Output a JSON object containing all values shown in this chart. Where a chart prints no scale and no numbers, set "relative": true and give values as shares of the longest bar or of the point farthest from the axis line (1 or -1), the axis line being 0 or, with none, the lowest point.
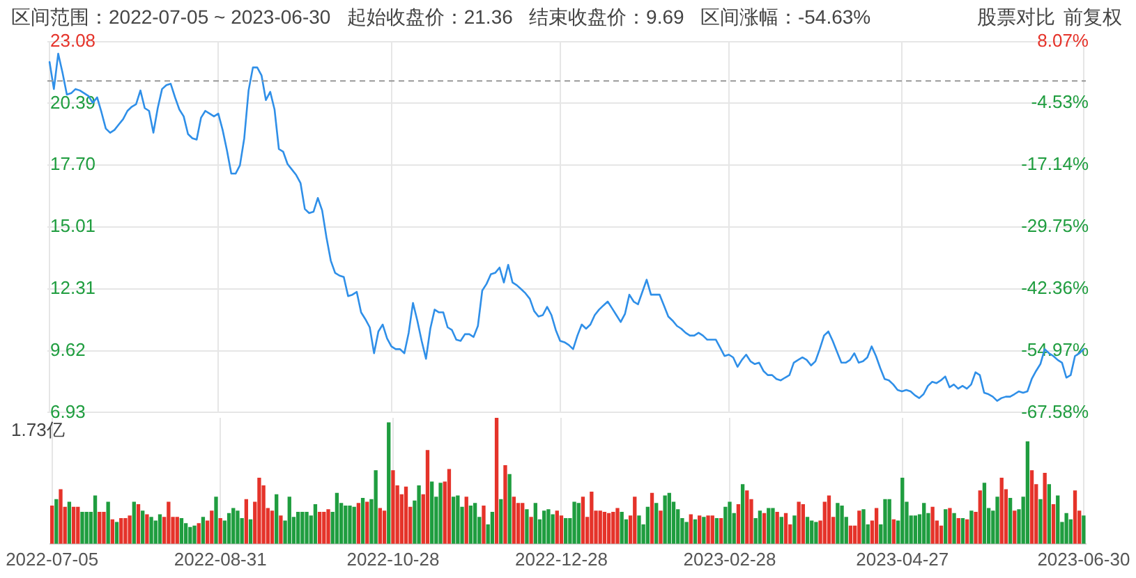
{
  "chart_data": [
    {
      "type": "line",
      "title": "区间范围：2022-07-05 ~ 2023-06-30   起始收盘价：21.36   结束收盘价：9.69   区间涨幅：-54.63%",
      "annotations": [
        "股票对比",
        "前复权"
      ],
      "categories": [
        "2022-07-05",
        null,
        null,
        null,
        null,
        null,
        null,
        null,
        null,
        null,
        null,
        null,
        null,
        null,
        null,
        null,
        null,
        null,
        null,
        null,
        null,
        null,
        null,
        null,
        null,
        null,
        null,
        null,
        null,
        null,
        null,
        null,
        null,
        null,
        null,
        null,
        null,
        null,
        null,
        "2022-08-31",
        null,
        null,
        null,
        null,
        null,
        null,
        null,
        null,
        null,
        null,
        null,
        null,
        null,
        null,
        null,
        null,
        null,
        null,
        null,
        null,
        null,
        null,
        null,
        null,
        null,
        null,
        null,
        null,
        null,
        null,
        null,
        null,
        null,
        null,
        null,
        null,
        null,
        null,
        null,
        "2022-10-28",
        null,
        null,
        null,
        null,
        null,
        null,
        null,
        null,
        null,
        null,
        null,
        null,
        null,
        null,
        null,
        null,
        null,
        null,
        null,
        null,
        null,
        null,
        null,
        null,
        null,
        null,
        null,
        null,
        null,
        null,
        null,
        null,
        null,
        null,
        null,
        null,
        null,
        null,
        "2022-12-28",
        null,
        null,
        null,
        null,
        null,
        null,
        null,
        null,
        null,
        null,
        null,
        null,
        null,
        null,
        null,
        null,
        null,
        null,
        null,
        null,
        null,
        null,
        null,
        null,
        null,
        null,
        null,
        null,
        null,
        null,
        null,
        null,
        null,
        null,
        null,
        null,
        null,
        null,
        "2023-02-28",
        null,
        null,
        null,
        null,
        null,
        null,
        null,
        null,
        null,
        null,
        null,
        null,
        null,
        null,
        null,
        null,
        null,
        null,
        null,
        null,
        null,
        null,
        null,
        null,
        null,
        null,
        null,
        null,
        null,
        null,
        null,
        null,
        null,
        null,
        null,
        null,
        null,
        null,
        null,
        "2023-04-27",
        null,
        null,
        null,
        null,
        null,
        null,
        null,
        null,
        null,
        null,
        null,
        null,
        null,
        null,
        null,
        null,
        null,
        null,
        null,
        null,
        null,
        null,
        null,
        null,
        null,
        null,
        null,
        null,
        null,
        null,
        null,
        null,
        null,
        null,
        null,
        null,
        null,
        null,
        null,
        null,
        null,
        "2023-06-30"
      ],
      "values": [
        22.19,
        21.01,
        22.55,
        21.72,
        20.77,
        20.83,
        21.01,
        20.95,
        20.83,
        20.71,
        20.41,
        20.65,
        20.0,
        19.29,
        19.11,
        19.23,
        19.47,
        19.7,
        20.06,
        20.24,
        20.35,
        20.95,
        20.18,
        20.06,
        19.11,
        20.18,
        21.01,
        21.18,
        21.24,
        20.65,
        20.12,
        19.82,
        19.05,
        18.87,
        18.81,
        19.76,
        20.06,
        19.94,
        19.82,
        19.94,
        19.23,
        18.34,
        17.33,
        17.33,
        17.69,
        18.87,
        20.95,
        21.95,
        21.95,
        21.6,
        20.53,
        20.89,
        20.12,
        18.4,
        18.28,
        17.75,
        17.51,
        17.27,
        16.92,
        15.79,
        15.61,
        15.67,
        16.27,
        15.73,
        14.55,
        13.54,
        13.01,
        12.89,
        12.83,
        12.0,
        12.06,
        12.18,
        11.29,
        10.99,
        10.64,
        9.51,
        10.46,
        10.76,
        10.16,
        9.81,
        9.69,
        9.69,
        9.51,
        10.4,
        11.7,
        10.93,
        10.05,
        9.27,
        10.58,
        11.41,
        11.29,
        11.29,
        10.64,
        10.52,
        10.1,
        10.05,
        10.34,
        10.34,
        10.22,
        10.7,
        12.24,
        12.53,
        12.95,
        13.01,
        13.24,
        12.59,
        13.36,
        12.59,
        12.47,
        12.3,
        12.12,
        11.88,
        11.35,
        11.11,
        11.17,
        11.53,
        11.17,
        10.52,
        10.05,
        9.99,
        9.87,
        9.69,
        10.28,
        10.76,
        10.58,
        10.76,
        11.17,
        11.41,
        11.59,
        11.76,
        11.47,
        11.17,
        10.87,
        11.23,
        12.06,
        11.76,
        11.64,
        12.18,
        12.71,
        12.06,
        12.06,
        12.06,
        11.59,
        11.11,
        10.93,
        10.7,
        10.58,
        10.4,
        10.28,
        10.28,
        10.4,
        10.28,
        10.1,
        10.1,
        10.1,
        9.75,
        9.39,
        9.45,
        9.33,
        8.92,
        9.22,
        9.45,
        9.16,
        9.04,
        9.1,
        8.74,
        8.56,
        8.56,
        8.39,
        8.33,
        8.45,
        8.56,
        9.1,
        9.22,
        9.33,
        9.22,
        8.98,
        9.16,
        9.69,
        10.28,
        10.46,
        10.05,
        9.57,
        9.1,
        9.1,
        9.22,
        9.51,
        9.1,
        9.16,
        9.33,
        9.81,
        9.39,
        8.86,
        8.39,
        8.33,
        8.15,
        7.91,
        7.85,
        7.91,
        7.85,
        7.68,
        7.56,
        7.73,
        8.09,
        8.27,
        8.21,
        8.33,
        8.5,
        8.03,
        8.15,
        7.97,
        8.09,
        7.97,
        8.15,
        8.68,
        8.56,
        7.79,
        7.73,
        7.62,
        7.44,
        7.56,
        7.62,
        7.62,
        7.73,
        7.85,
        7.79,
        7.85,
        8.39,
        8.74,
        9.04,
        9.69,
        9.51,
        9.39,
        9.22,
        9.1,
        8.45,
        8.56,
        9.39,
        9.51,
        9.69
      ],
      "color": "#2f8fe8",
      "ylim": [
        6.93,
        23.08
      ],
      "yticks": [
        6.93,
        9.62,
        12.31,
        15.01,
        {
          "value": 17.7,
          "label": "17.70"
        },
        20.39,
        23.08
      ],
      "y2lim": [
        -67.58,
        8.07
      ],
      "y2ticks": [
        {
          "value": -67.58,
          "label": "-67.58%"
        },
        {
          "value": -54.97,
          "label": "-54.97%"
        },
        {
          "value": -42.36,
          "label": "-42.36%"
        },
        {
          "value": -29.75,
          "label": "-29.75%"
        },
        {
          "value": -17.14,
          "label": "-17.14%"
        },
        {
          "value": -4.53,
          "label": "-4.53%"
        },
        {
          "value": 8.07,
          "label": "8.07%"
        }
      ],
      "ref_lines": [
        {
          "axis": "y",
          "value": 21.36,
          "color": "#999999",
          "line_style": "dashed"
        }
      ],
      "grid": true,
      "tick_labels": "y"
    },
    {
      "type": "bar",
      "annotations": [
        "1.73亿"
      ],
      "relative": true,
      "grid": "x",
      "tick_labels": "x",
      "categories": [
        "2022-07-05",
        null,
        null,
        null,
        null,
        null,
        null,
        null,
        null,
        null,
        null,
        null,
        null,
        null,
        null,
        null,
        null,
        null,
        null,
        null,
        null,
        null,
        null,
        null,
        null,
        null,
        null,
        null,
        null,
        null,
        null,
        null,
        null,
        null,
        null,
        null,
        null,
        null,
        null,
        "2022-08-31",
        null,
        null,
        null,
        null,
        null,
        null,
        null,
        null,
        null,
        null,
        null,
        null,
        null,
        null,
        null,
        null,
        null,
        null,
        null,
        null,
        null,
        null,
        null,
        null,
        null,
        null,
        null,
        null,
        null,
        null,
        null,
        null,
        null,
        null,
        null,
        null,
        null,
        null,
        null,
        "2022-10-28",
        null,
        null,
        null,
        null,
        null,
        null,
        null,
        null,
        null,
        null,
        null,
        null,
        null,
        null,
        null,
        null,
        null,
        null,
        null,
        null,
        null,
        null,
        null,
        null,
        null,
        null,
        null,
        null,
        null,
        null,
        null,
        null,
        null,
        null,
        null,
        null,
        null,
        null,
        "2022-12-28",
        null,
        null,
        null,
        null,
        null,
        null,
        null,
        null,
        null,
        null,
        null,
        null,
        null,
        null,
        null,
        null,
        null,
        null,
        null,
        null,
        null,
        null,
        null,
        null,
        null,
        null,
        null,
        null,
        null,
        null,
        null,
        null,
        null,
        null,
        null,
        null,
        null,
        null,
        "2023-02-28",
        null,
        null,
        null,
        null,
        null,
        null,
        null,
        null,
        null,
        null,
        null,
        null,
        null,
        null,
        null,
        null,
        null,
        null,
        null,
        null,
        null,
        null,
        null,
        null,
        null,
        null,
        null,
        null,
        null,
        null,
        null,
        null,
        null,
        null,
        null,
        null,
        null,
        null,
        null,
        "2023-04-27",
        null,
        null,
        null,
        null,
        null,
        null,
        null,
        null,
        null,
        null,
        null,
        null,
        null,
        null,
        null,
        null,
        null,
        null,
        null,
        null,
        null,
        null,
        null,
        null,
        null,
        null,
        null,
        null,
        null,
        null,
        null,
        null,
        null,
        null,
        null,
        null,
        null,
        null,
        null,
        null,
        null,
        "2023-06-30"
      ],
      "values": [
        0.3,
        0.35,
        0.43,
        0.29,
        0.33,
        0.29,
        0.29,
        0.25,
        0.25,
        0.25,
        0.38,
        0.25,
        0.25,
        0.33,
        0.19,
        0.17,
        0.2,
        0.2,
        0.22,
        0.33,
        0.31,
        0.26,
        0.23,
        0.21,
        0.18,
        0.23,
        0.21,
        0.33,
        0.21,
        0.21,
        0.2,
        0.16,
        0.13,
        0.14,
        0.16,
        0.21,
        0.18,
        0.26,
        0.37,
        0.2,
        0.18,
        0.24,
        0.28,
        0.26,
        0.2,
        0.35,
        0.19,
        0.33,
        0.52,
        0.46,
        0.28,
        0.26,
        0.39,
        0.22,
        0.18,
        0.37,
        0.21,
        0.25,
        0.25,
        0.25,
        0.22,
        0.31,
        0.25,
        0.25,
        0.27,
        0.25,
        0.4,
        0.32,
        0.3,
        0.3,
        0.29,
        0.32,
        0.36,
        0.33,
        0.35,
        0.58,
        0.28,
        0.26,
        0.96,
        0.58,
        0.46,
        0.39,
        0.45,
        0.29,
        0.34,
        0.46,
        0.39,
        0.74,
        0.49,
        0.37,
        0.48,
        0.49,
        0.59,
        0.37,
        0.38,
        0.29,
        0.37,
        0.3,
        0.32,
        0.21,
        0.3,
        0.15,
        0.25,
        1,
        0.35,
        0.62,
        0.55,
        0.37,
        0.32,
        0.32,
        0.27,
        0.21,
        0.32,
        0.19,
        0.26,
        0.27,
        0.23,
        0.26,
        0.22,
        0.2,
        0.2,
        0.33,
        0.32,
        0.37,
        0.21,
        0.41,
        0.26,
        0.26,
        0.25,
        0.24,
        0.25,
        0.28,
        0.25,
        0.19,
        0.22,
        0.37,
        0.22,
        0.15,
        0.29,
        0.4,
        0.32,
        0.26,
        0.38,
        0.4,
        0.33,
        0.27,
        0.2,
        0.17,
        0.23,
        0.19,
        0.22,
        0.21,
        0.22,
        0.22,
        0.2,
        0.2,
        0.29,
        0.33,
        0.24,
        0.31,
        0.47,
        0.42,
        0.35,
        0.2,
        0.26,
        0.24,
        0.28,
        0.28,
        0.25,
        0.21,
        0.24,
        0.15,
        0.22,
        0.33,
        0.31,
        0.21,
        0.18,
        0.17,
        0.18,
        0.33,
        0.38,
        0.21,
        0.32,
        0.3,
        0.21,
        0.14,
        0.14,
        0.26,
        0.27,
        0.15,
        0.18,
        0.28,
        0.15,
        0.35,
        0.35,
        0.19,
        0.18,
        0.52,
        0.33,
        0.22,
        0.22,
        0.23,
        0.32,
        0.24,
        0.29,
        0.18,
        0.14,
        0.27,
        0.28,
        0.24,
        0.2,
        0.2,
        0.19,
        0.26,
        0.25,
        0.42,
        0.48,
        0.28,
        0.26,
        0.37,
        0.52,
        0.43,
        0.36,
        0.26,
        0.27,
        0.37,
        0.81,
        0.58,
        0.47,
        0.35,
        0.56,
        0.47,
        0.31,
        0.38,
        0.17,
        0.24,
        0.19,
        0.42,
        0.26,
        0.22
      ],
      "colors": [
        "#e5332a",
        "#1f9d3f",
        "#e5332a",
        "#e5332a",
        "#1f9d3f",
        "#e5332a",
        "#e5332a",
        "#1f9d3f",
        "#1f9d3f",
        "#1f9d3f",
        "#1f9d3f",
        "#e5332a",
        "#e5332a",
        "#1f9d3f",
        "#e5332a",
        "#1f9d3f",
        "#e5332a",
        "#e5332a",
        "#e5332a",
        "#1f9d3f",
        "#e5332a",
        "#1f9d3f",
        "#e5332a",
        "#1f9d3f",
        "#1f9d3f",
        "#1f9d3f",
        "#e5332a",
        "#e5332a",
        "#e5332a",
        "#e5332a",
        "#1f9d3f",
        "#1f9d3f",
        "#1f9d3f",
        "#1f9d3f",
        "#e5332a",
        "#1f9d3f",
        "#e5332a",
        "#e5332a",
        "#1f9d3f",
        "#e5332a",
        "#1f9d3f",
        "#1f9d3f",
        "#1f9d3f",
        "#1f9d3f",
        "#1f9d3f",
        "#e5332a",
        "#1f9d3f",
        "#e5332a",
        "#e5332a",
        "#e5332a",
        "#e5332a",
        "#e5332a",
        "#1f9d3f",
        "#e5332a",
        "#1f9d3f",
        "#1f9d3f",
        "#1f9d3f",
        "#1f9d3f",
        "#1f9d3f",
        "#1f9d3f",
        "#1f9d3f",
        "#1f9d3f",
        "#e5332a",
        "#e5332a",
        "#e5332a",
        "#1f9d3f",
        "#1f9d3f",
        "#1f9d3f",
        "#1f9d3f",
        "#1f9d3f",
        "#1f9d3f",
        "#e5332a",
        "#1f9d3f",
        "#e5332a",
        "#1f9d3f",
        "#1f9d3f",
        "#e5332a",
        "#e5332a",
        "#1f9d3f",
        "#e5332a",
        "#e5332a",
        "#e5332a",
        "#e5332a",
        "#e5332a",
        "#1f9d3f",
        "#1f9d3f",
        "#e5332a",
        "#e5332a",
        "#1f9d3f",
        "#1f9d3f",
        "#1f9d3f",
        "#e5332a",
        "#e5332a",
        "#1f9d3f",
        "#1f9d3f",
        "#1f9d3f",
        "#e5332a",
        "#1f9d3f",
        "#1f9d3f",
        "#1f9d3f",
        "#e5332a",
        "#1f9d3f",
        "#1f9d3f",
        "#e5332a",
        "#1f9d3f",
        "#e5332a",
        "#1f9d3f",
        "#e5332a",
        "#e5332a",
        "#e5332a",
        "#1f9d3f",
        "#e5332a",
        "#1f9d3f",
        "#1f9d3f",
        "#1f9d3f",
        "#1f9d3f",
        "#1f9d3f",
        "#e5332a",
        "#e5332a",
        "#1f9d3f",
        "#1f9d3f",
        "#1f9d3f",
        "#1f9d3f",
        "#e5332a",
        "#e5332a",
        "#e5332a",
        "#e5332a",
        "#e5332a",
        "#e5332a",
        "#e5332a",
        "#e5332a",
        "#e5332a",
        "#1f9d3f",
        "#1f9d3f",
        "#e5332a",
        "#e5332a",
        "#1f9d3f",
        "#1f9d3f",
        "#1f9d3f",
        "#e5332a",
        "#1f9d3f",
        "#e5332a",
        "#1f9d3f",
        "#1f9d3f",
        "#1f9d3f",
        "#1f9d3f",
        "#1f9d3f",
        "#1f9d3f",
        "#e5332a",
        "#1f9d3f",
        "#e5332a",
        "#1f9d3f",
        "#e5332a",
        "#e5332a",
        "#1f9d3f",
        "#e5332a",
        "#1f9d3f",
        "#1f9d3f",
        "#1f9d3f",
        "#e5332a",
        "#1f9d3f",
        "#e5332a",
        "#e5332a",
        "#1f9d3f",
        "#1f9d3f",
        "#e5332a",
        "#1f9d3f",
        "#1f9d3f",
        "#e5332a",
        "#1f9d3f",
        "#e5332a",
        "#e5332a",
        "#1f9d3f",
        "#e5332a",
        "#e5332a",
        "#1f9d3f",
        "#1f9d3f",
        "#1f9d3f",
        "#e5332a",
        "#e5332a",
        "#e5332a",
        "#e5332a",
        "#1f9d3f",
        "#1f9d3f",
        "#1f9d3f",
        "#e5332a",
        "#e5332a",
        "#e5332a",
        "#1f9d3f",
        "#1f9d3f",
        "#e5332a",
        "#e5332a",
        "#1f9d3f",
        "#1f9d3f",
        "#1f9d3f",
        "#e5332a",
        "#1f9d3f",
        "#1f9d3f",
        "#1f9d3f",
        "#1f9d3f",
        "#1f9d3f",
        "#1f9d3f",
        "#1f9d3f",
        "#1f9d3f",
        "#e5332a",
        "#e5332a",
        "#e5332a",
        "#1f9d3f",
        "#e5332a",
        "#1f9d3f",
        "#e5332a",
        "#1f9d3f",
        "#e5332a",
        "#1f9d3f",
        "#e5332a",
        "#e5332a",
        "#1f9d3f",
        "#1f9d3f",
        "#1f9d3f",
        "#1f9d3f",
        "#e5332a",
        "#e5332a",
        "#1f9d3f",
        "#e5332a",
        "#1f9d3f",
        "#1f9d3f",
        "#1f9d3f",
        "#e5332a",
        "#e5332a",
        "#1f9d3f",
        "#e5332a",
        "#1f9d3f",
        "#e5332a",
        "#1f9d3f",
        "#1f9d3f",
        "#1f9d3f",
        "#1f9d3f",
        "#e5332a",
        "#e5332a",
        "#1f9d3f"
      ]
    }
  ]
}
